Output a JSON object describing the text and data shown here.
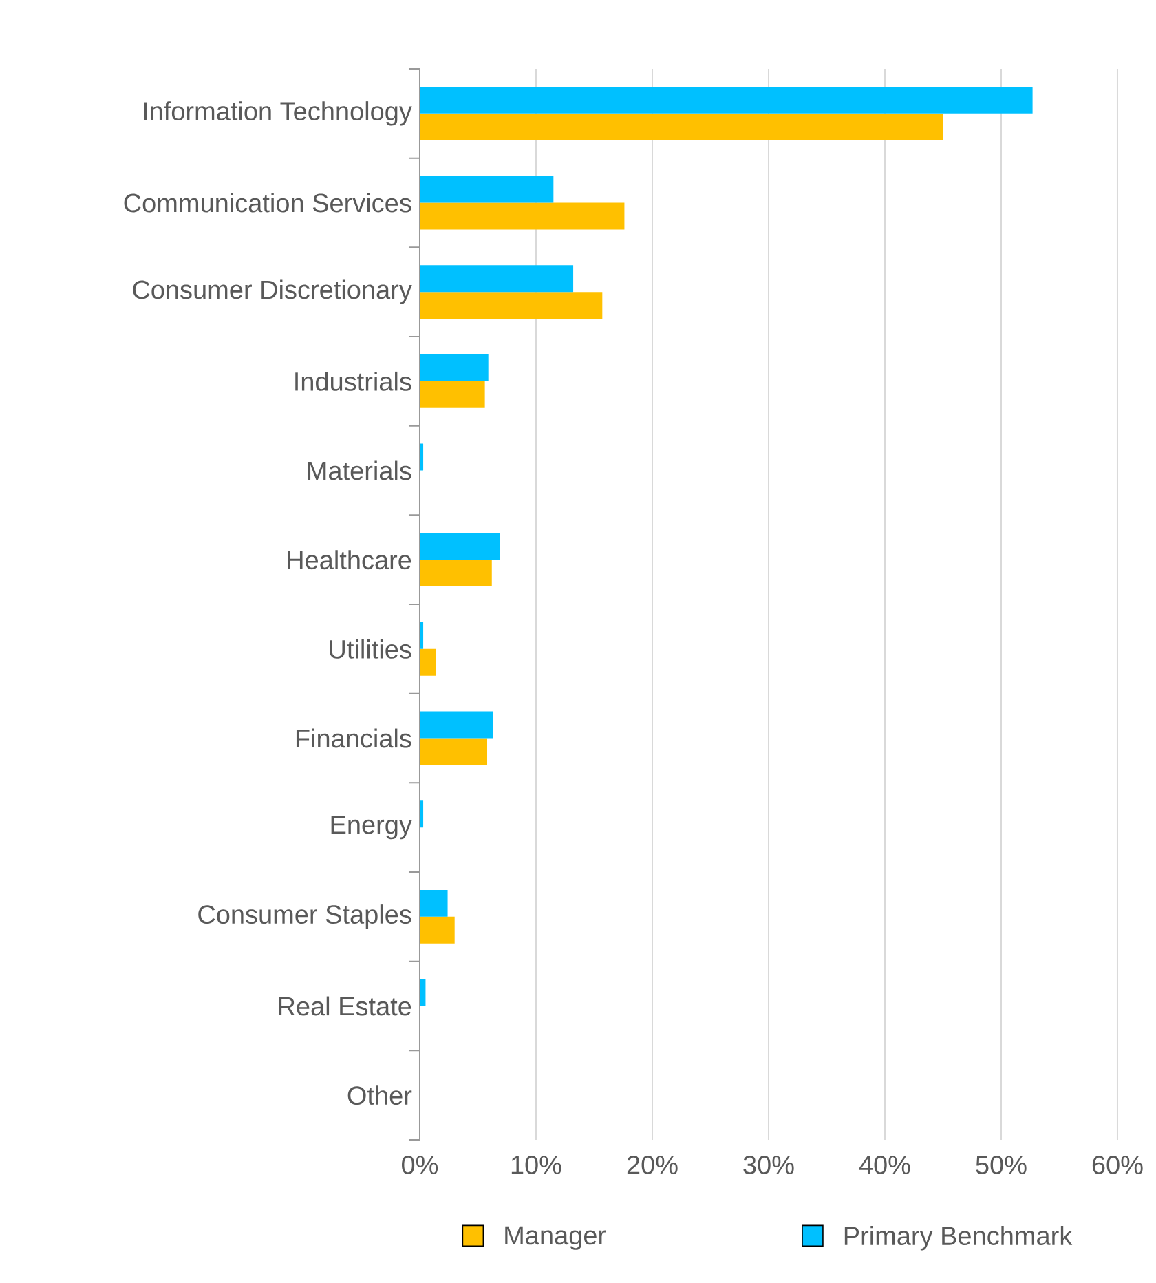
{
  "chart_data": {
    "type": "bar",
    "orientation": "horizontal",
    "categories": [
      "Information Technology",
      "Communication Services",
      "Consumer Discretionary",
      "Industrials",
      "Materials",
      "Healthcare",
      "Utilities",
      "Financials",
      "Energy",
      "Consumer Staples",
      "Real Estate",
      "Other"
    ],
    "series": [
      {
        "name": "Manager",
        "color": "#ffc000",
        "values": [
          45.0,
          17.6,
          15.7,
          5.6,
          0,
          6.2,
          1.4,
          5.8,
          0,
          3.0,
          0,
          0
        ]
      },
      {
        "name": "Primary Benchmark",
        "color": "#00c0ff",
        "values": [
          52.7,
          11.5,
          13.2,
          5.9,
          0.3,
          6.9,
          0.3,
          6.3,
          0.3,
          2.4,
          0.5,
          0
        ]
      }
    ],
    "xlim": [
      0,
      60
    ],
    "xticks": [
      {
        "value": 0,
        "label": "0%"
      },
      {
        "value": 10,
        "label": "10%"
      },
      {
        "value": 20,
        "label": "20%"
      },
      {
        "value": 30,
        "label": "30%"
      },
      {
        "value": 40,
        "label": "40%"
      },
      {
        "value": 50,
        "label": "50%"
      },
      {
        "value": 60,
        "label": "60%"
      }
    ],
    "grid": "x",
    "legend": "bottom"
  }
}
